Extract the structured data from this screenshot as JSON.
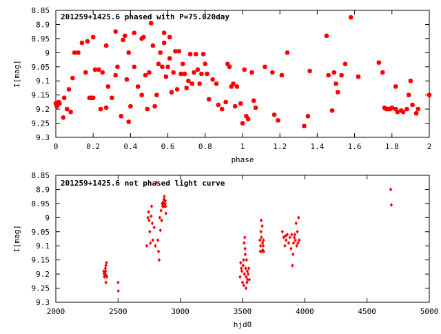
{
  "chart_data": [
    {
      "type": "scatter",
      "title": "201259+1425.6 phased with P=75.020day",
      "xlabel": "phase",
      "ylabel": "I[mag]",
      "xlim": [
        0,
        2
      ],
      "ylim": [
        8.85,
        9.3
      ],
      "y_inverted": true,
      "grid": false,
      "marker_color": "#ff0000",
      "marker": "asterisk",
      "x_ticks": [
        0,
        0.2,
        0.4,
        0.6,
        0.8,
        1,
        1.2,
        1.4,
        1.6,
        1.8,
        2
      ],
      "x_tick_labels": [
        "0",
        "0.2",
        "0.4",
        "0.6",
        "0.8",
        "1",
        "1.2",
        "1.4",
        "1.6",
        "1.8",
        "2"
      ],
      "y_ticks": [
        8.85,
        8.9,
        8.95,
        9,
        9.05,
        9.1,
        9.15,
        9.2,
        9.25,
        9.3
      ],
      "y_tick_labels": [
        "8.85",
        "8.9",
        "8.95",
        "9",
        "9.05",
        "9.1",
        "9.15",
        "9.2",
        "9.25",
        "9.3"
      ],
      "points": [
        [
          0.0,
          9.18
        ],
        [
          0.005,
          9.19
        ],
        [
          0.01,
          9.185
        ],
        [
          0.015,
          9.175
        ],
        [
          0.02,
          9.18
        ],
        [
          0.04,
          9.23
        ],
        [
          0.045,
          9.16
        ],
        [
          0.06,
          9.2
        ],
        [
          0.07,
          9.13
        ],
        [
          0.08,
          9.21
        ],
        [
          0.09,
          9.09
        ],
        [
          0.1,
          9.0
        ],
        [
          0.12,
          9.0
        ],
        [
          0.14,
          8.965
        ],
        [
          0.16,
          9.07
        ],
        [
          0.17,
          8.96
        ],
        [
          0.18,
          9.16
        ],
        [
          0.19,
          9.16
        ],
        [
          0.2,
          9.16
        ],
        [
          0.2,
          8.945
        ],
        [
          0.21,
          9.06
        ],
        [
          0.23,
          9.06
        ],
        [
          0.24,
          9.2
        ],
        [
          0.25,
          9.07
        ],
        [
          0.27,
          9.195
        ],
        [
          0.27,
          8.975
        ],
        [
          0.28,
          9.12
        ],
        [
          0.3,
          9.16
        ],
        [
          0.32,
          9.08
        ],
        [
          0.32,
          8.925
        ],
        [
          0.33,
          9.05
        ],
        [
          0.35,
          9.225
        ],
        [
          0.36,
          8.955
        ],
        [
          0.37,
          8.94
        ],
        [
          0.38,
          9.095
        ],
        [
          0.39,
          9.0
        ],
        [
          0.39,
          9.245
        ],
        [
          0.4,
          9.19
        ],
        [
          0.42,
          8.93
        ],
        [
          0.42,
          9.05
        ],
        [
          0.44,
          9.12
        ],
        [
          0.46,
          9.15
        ],
        [
          0.46,
          8.95
        ],
        [
          0.47,
          8.945
        ],
        [
          0.48,
          9.08
        ],
        [
          0.49,
          9.2
        ],
        [
          0.5,
          9.07
        ],
        [
          0.51,
          8.895
        ],
        [
          0.52,
          8.975
        ],
        [
          0.53,
          9.19
        ],
        [
          0.54,
          9.15
        ],
        [
          0.55,
          9.04
        ],
        [
          0.56,
          9.0
        ],
        [
          0.57,
          9.05
        ],
        [
          0.58,
          8.965
        ],
        [
          0.58,
          8.93
        ],
        [
          0.59,
          9.085
        ],
        [
          0.6,
          9.05
        ],
        [
          0.61,
          9.02
        ],
        [
          0.61,
          8.945
        ],
        [
          0.62,
          9.14
        ],
        [
          0.63,
          9.07
        ],
        [
          0.64,
          8.995
        ],
        [
          0.65,
          9.13
        ],
        [
          0.66,
          8.995
        ],
        [
          0.67,
          9.075
        ],
        [
          0.68,
          9.04
        ],
        [
          0.69,
          9.075
        ],
        [
          0.7,
          9.125
        ],
        [
          0.71,
          9.1
        ],
        [
          0.72,
          9.005
        ],
        [
          0.73,
          9.11
        ],
        [
          0.74,
          9.07
        ],
        [
          0.75,
          9.005
        ],
        [
          0.76,
          9.06
        ],
        [
          0.77,
          9.11
        ],
        [
          0.78,
          9.075
        ],
        [
          0.79,
          9.005
        ],
        [
          0.8,
          9.04
        ],
        [
          0.81,
          9.075
        ],
        [
          0.82,
          9.165
        ],
        [
          0.84,
          9.095
        ],
        [
          0.86,
          9.11
        ],
        [
          0.87,
          9.185
        ],
        [
          0.89,
          9.2
        ],
        [
          0.91,
          9.175
        ],
        [
          0.92,
          9.04
        ],
        [
          0.93,
          9.05
        ],
        [
          0.94,
          9.12
        ],
        [
          0.95,
          9.11
        ],
        [
          0.96,
          9.19
        ],
        [
          0.97,
          9.12
        ],
        [
          0.99,
          9.18
        ],
        [
          1.0,
          9.25
        ],
        [
          1.01,
          9.06
        ],
        [
          1.02,
          9.225
        ],
        [
          1.03,
          9.235
        ],
        [
          1.05,
          9.07
        ],
        [
          1.06,
          9.17
        ],
        [
          1.07,
          9.195
        ],
        [
          1.12,
          9.05
        ],
        [
          1.16,
          9.07
        ],
        [
          1.17,
          9.22
        ],
        [
          1.19,
          9.24
        ],
        [
          1.21,
          9.08
        ],
        [
          1.24,
          9.0
        ],
        [
          1.33,
          9.26
        ],
        [
          1.35,
          9.225
        ],
        [
          1.36,
          9.065
        ],
        [
          1.45,
          8.94
        ],
        [
          1.46,
          9.08
        ],
        [
          1.48,
          9.205
        ],
        [
          1.49,
          9.07
        ],
        [
          1.5,
          9.11
        ],
        [
          1.51,
          9.14
        ],
        [
          1.53,
          9.08
        ],
        [
          1.55,
          9.04
        ],
        [
          1.58,
          8.875
        ],
        [
          1.62,
          9.085
        ],
        [
          1.73,
          9.035
        ],
        [
          1.75,
          9.07
        ],
        [
          1.76,
          9.195
        ],
        [
          1.77,
          9.2
        ],
        [
          1.78,
          9.2
        ],
        [
          1.79,
          9.2
        ],
        [
          1.8,
          9.195
        ],
        [
          1.82,
          9.12
        ],
        [
          1.82,
          9.2
        ],
        [
          1.83,
          9.21
        ],
        [
          1.85,
          9.205
        ],
        [
          1.86,
          9.21
        ],
        [
          1.88,
          9.2
        ],
        [
          1.89,
          9.15
        ],
        [
          1.9,
          9.1
        ],
        [
          1.91,
          9.185
        ],
        [
          1.93,
          9.215
        ],
        [
          1.94,
          9.2
        ],
        [
          2.0,
          9.15
        ]
      ]
    },
    {
      "type": "scatter",
      "title": "201259+1425.6 not phased light curve",
      "xlabel": "hjd0",
      "ylabel": "I[mag]",
      "xlim": [
        2000,
        5000
      ],
      "ylim": [
        8.85,
        9.3
      ],
      "y_inverted": true,
      "grid": false,
      "marker_color": "#ff0000",
      "marker": "diamond",
      "x_ticks": [
        2000,
        2500,
        3000,
        3500,
        4000,
        4500,
        5000
      ],
      "x_tick_labels": [
        "2000",
        "2500",
        "3000",
        "3500",
        "4000",
        "4500",
        "5000"
      ],
      "y_ticks": [
        8.85,
        8.9,
        8.95,
        9,
        9.05,
        9.1,
        9.15,
        9.2,
        9.25,
        9.3
      ],
      "y_tick_labels": [
        "8.85",
        "8.9",
        "8.95",
        "9",
        "9.05",
        "9.1",
        "9.15",
        "9.2",
        "9.25",
        "9.3"
      ],
      "points": [
        [
          2385,
          9.19
        ],
        [
          2388,
          9.2
        ],
        [
          2390,
          9.21
        ],
        [
          2392,
          9.195
        ],
        [
          2395,
          9.2
        ],
        [
          2398,
          9.18
        ],
        [
          2400,
          9.19
        ],
        [
          2402,
          9.17
        ],
        [
          2403,
          9.23
        ],
        [
          2405,
          9.205
        ],
        [
          2407,
          9.16
        ],
        [
          2410,
          9.21
        ],
        [
          2500,
          9.23
        ],
        [
          2502,
          9.26
        ],
        [
          2730,
          9.1
        ],
        [
          2740,
          9.0
        ],
        [
          2745,
          8.98
        ],
        [
          2750,
          9.01
        ],
        [
          2755,
          9.05
        ],
        [
          2760,
          9.09
        ],
        [
          2765,
          8.995
        ],
        [
          2770,
          8.96
        ],
        [
          2775,
          9.02
        ],
        [
          2780,
          9.08
        ],
        [
          2790,
          9.035
        ],
        [
          2800,
          9.1
        ],
        [
          2808,
          8.875
        ],
        [
          2820,
          9.08
        ],
        [
          2825,
          9.12
        ],
        [
          2830,
          9.15
        ],
        [
          2835,
          9.0
        ],
        [
          2840,
          9.045
        ],
        [
          2845,
          8.975
        ],
        [
          2850,
          9.01
        ],
        [
          2855,
          8.95
        ],
        [
          2858,
          8.96
        ],
        [
          2860,
          8.955
        ],
        [
          2862,
          8.945
        ],
        [
          2865,
          8.95
        ],
        [
          2868,
          8.935
        ],
        [
          2870,
          8.96
        ],
        [
          2872,
          8.925
        ],
        [
          2875,
          8.955
        ],
        [
          2878,
          8.95
        ],
        [
          2880,
          8.94
        ],
        [
          2882,
          8.96
        ],
        [
          2885,
          8.985
        ],
        [
          3480,
          9.21
        ],
        [
          3485,
          9.16
        ],
        [
          3490,
          9.18
        ],
        [
          3495,
          9.19
        ],
        [
          3500,
          9.23
        ],
        [
          3505,
          9.17
        ],
        [
          3508,
          9.15
        ],
        [
          3510,
          9.24
        ],
        [
          3512,
          9.09
        ],
        [
          3515,
          9.2
        ],
        [
          3518,
          9.07
        ],
        [
          3520,
          9.11
        ],
        [
          3522,
          9.13
        ],
        [
          3525,
          9.18
        ],
        [
          3528,
          9.25
        ],
        [
          3530,
          9.21
        ],
        [
          3532,
          9.15
        ],
        [
          3535,
          9.23
        ],
        [
          3538,
          9.19
        ],
        [
          3540,
          9.22
        ],
        [
          3545,
          9.2
        ],
        [
          3550,
          9.18
        ],
        [
          3555,
          9.22
        ],
        [
          3640,
          9.08
        ],
        [
          3643,
          9.12
        ],
        [
          3645,
          9.1
        ],
        [
          3648,
          9.05
        ],
        [
          3650,
          9.01
        ],
        [
          3652,
          9.07
        ],
        [
          3655,
          9.12
        ],
        [
          3658,
          9.03
        ],
        [
          3660,
          9.09
        ],
        [
          3662,
          9.115
        ],
        [
          3665,
          9.1
        ],
        [
          3668,
          9.08
        ],
        [
          3670,
          9.12
        ],
        [
          3820,
          9.05
        ],
        [
          3830,
          9.07
        ],
        [
          3840,
          9.1
        ],
        [
          3845,
          9.065
        ],
        [
          3850,
          9.08
        ],
        [
          3860,
          9.06
        ],
        [
          3870,
          9.09
        ],
        [
          3880,
          9.07
        ],
        [
          3890,
          9.11
        ],
        [
          3895,
          9.06
        ],
        [
          3900,
          9.17
        ],
        [
          3905,
          9.13
        ],
        [
          3910,
          9.09
        ],
        [
          3915,
          9.07
        ],
        [
          3920,
          9.06
        ],
        [
          3925,
          9.08
        ],
        [
          3930,
          9.02
        ],
        [
          3935,
          9.1
        ],
        [
          3940,
          9.05
        ],
        [
          3945,
          9.09
        ],
        [
          3950,
          9.0
        ],
        [
          3955,
          9.08
        ],
        [
          4690,
          8.9
        ],
        [
          4695,
          8.955
        ]
      ]
    }
  ]
}
